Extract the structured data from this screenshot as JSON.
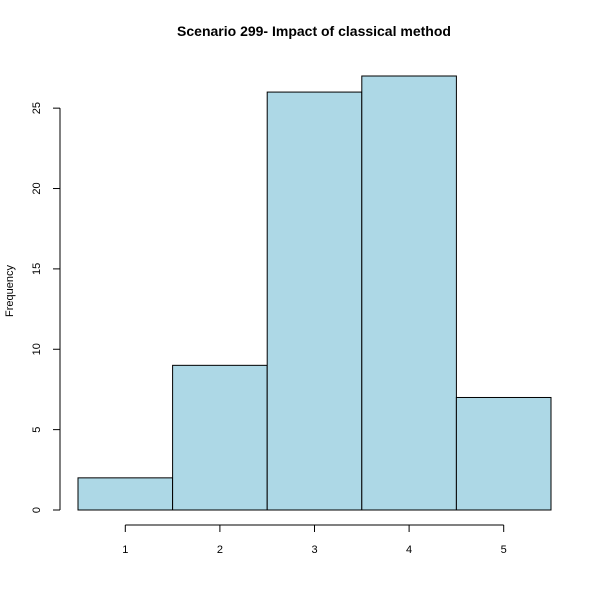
{
  "chart_data": {
    "type": "bar",
    "title": "Scenario 299- Impact of classical method",
    "xlabel": "",
    "ylabel": "Frequency",
    "categories": [
      "1",
      "2",
      "3",
      "4",
      "5"
    ],
    "values": [
      2,
      9,
      26,
      27,
      7
    ],
    "x_ticks": [
      "1",
      "2",
      "3",
      "4",
      "5"
    ],
    "y_ticks": [
      "0",
      "5",
      "10",
      "15",
      "20",
      "25"
    ],
    "ylim": [
      0,
      27
    ],
    "xlim": [
      0.5,
      5.5
    ],
    "bar_color": "#add8e6",
    "bar_border_color": "#000000",
    "grid": false,
    "legend": "none"
  }
}
